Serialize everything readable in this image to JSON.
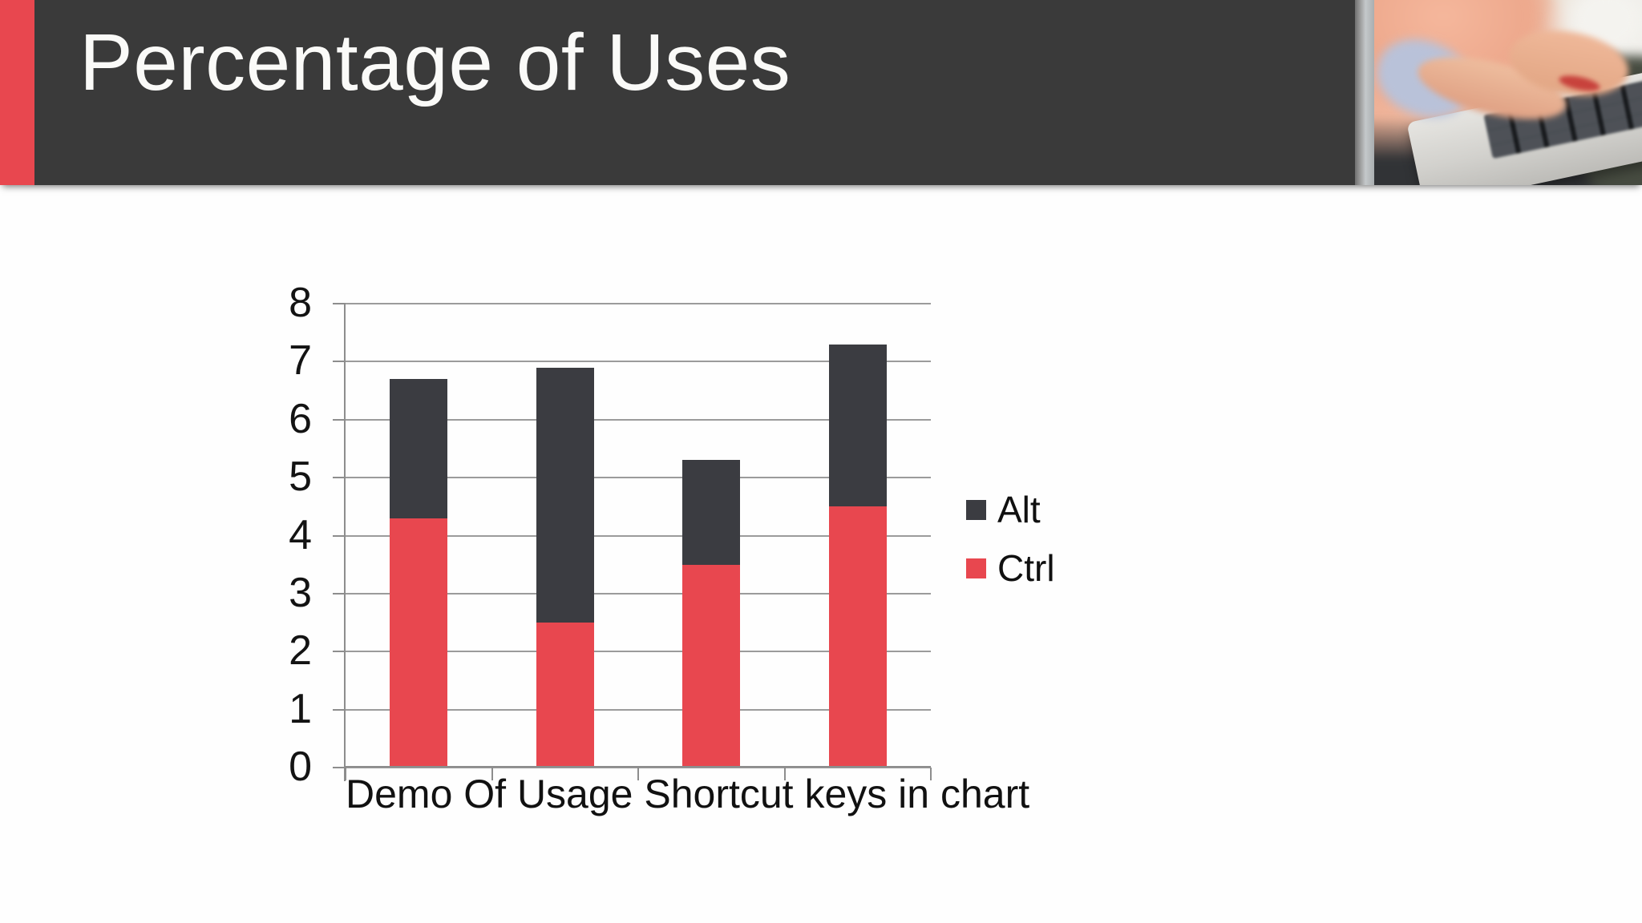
{
  "header": {
    "title": "Percentage of Uses",
    "photo_alt": "hands typing on a laptop keyboard",
    "accent_color": "#E8474F",
    "background_color": "#3A3A3A"
  },
  "chart_data": {
    "type": "bar",
    "stacked": true,
    "title": "",
    "xlabel": "Demo Of Usage Shortcut keys in chart",
    "ylabel": "",
    "ylim": [
      0,
      8
    ],
    "yticks": [
      0,
      1,
      2,
      3,
      4,
      5,
      6,
      7,
      8
    ],
    "grid": true,
    "categories": [
      "",
      "",
      "",
      ""
    ],
    "series": [
      {
        "name": "Ctrl",
        "color": "#E8474F",
        "values": [
          4.3,
          2.5,
          3.5,
          4.5
        ]
      },
      {
        "name": "Alt",
        "color": "#3B3C41",
        "values": [
          2.4,
          4.4,
          1.8,
          2.8
        ]
      }
    ],
    "stack_totals": [
      6.7,
      6.9,
      5.3,
      7.3
    ],
    "legend": {
      "position": "right",
      "entries": [
        "Alt",
        "Ctrl"
      ]
    },
    "colors": {
      "gridline": "#9B9B9B",
      "axis": "#8D8D8D",
      "text": "#131313"
    }
  }
}
